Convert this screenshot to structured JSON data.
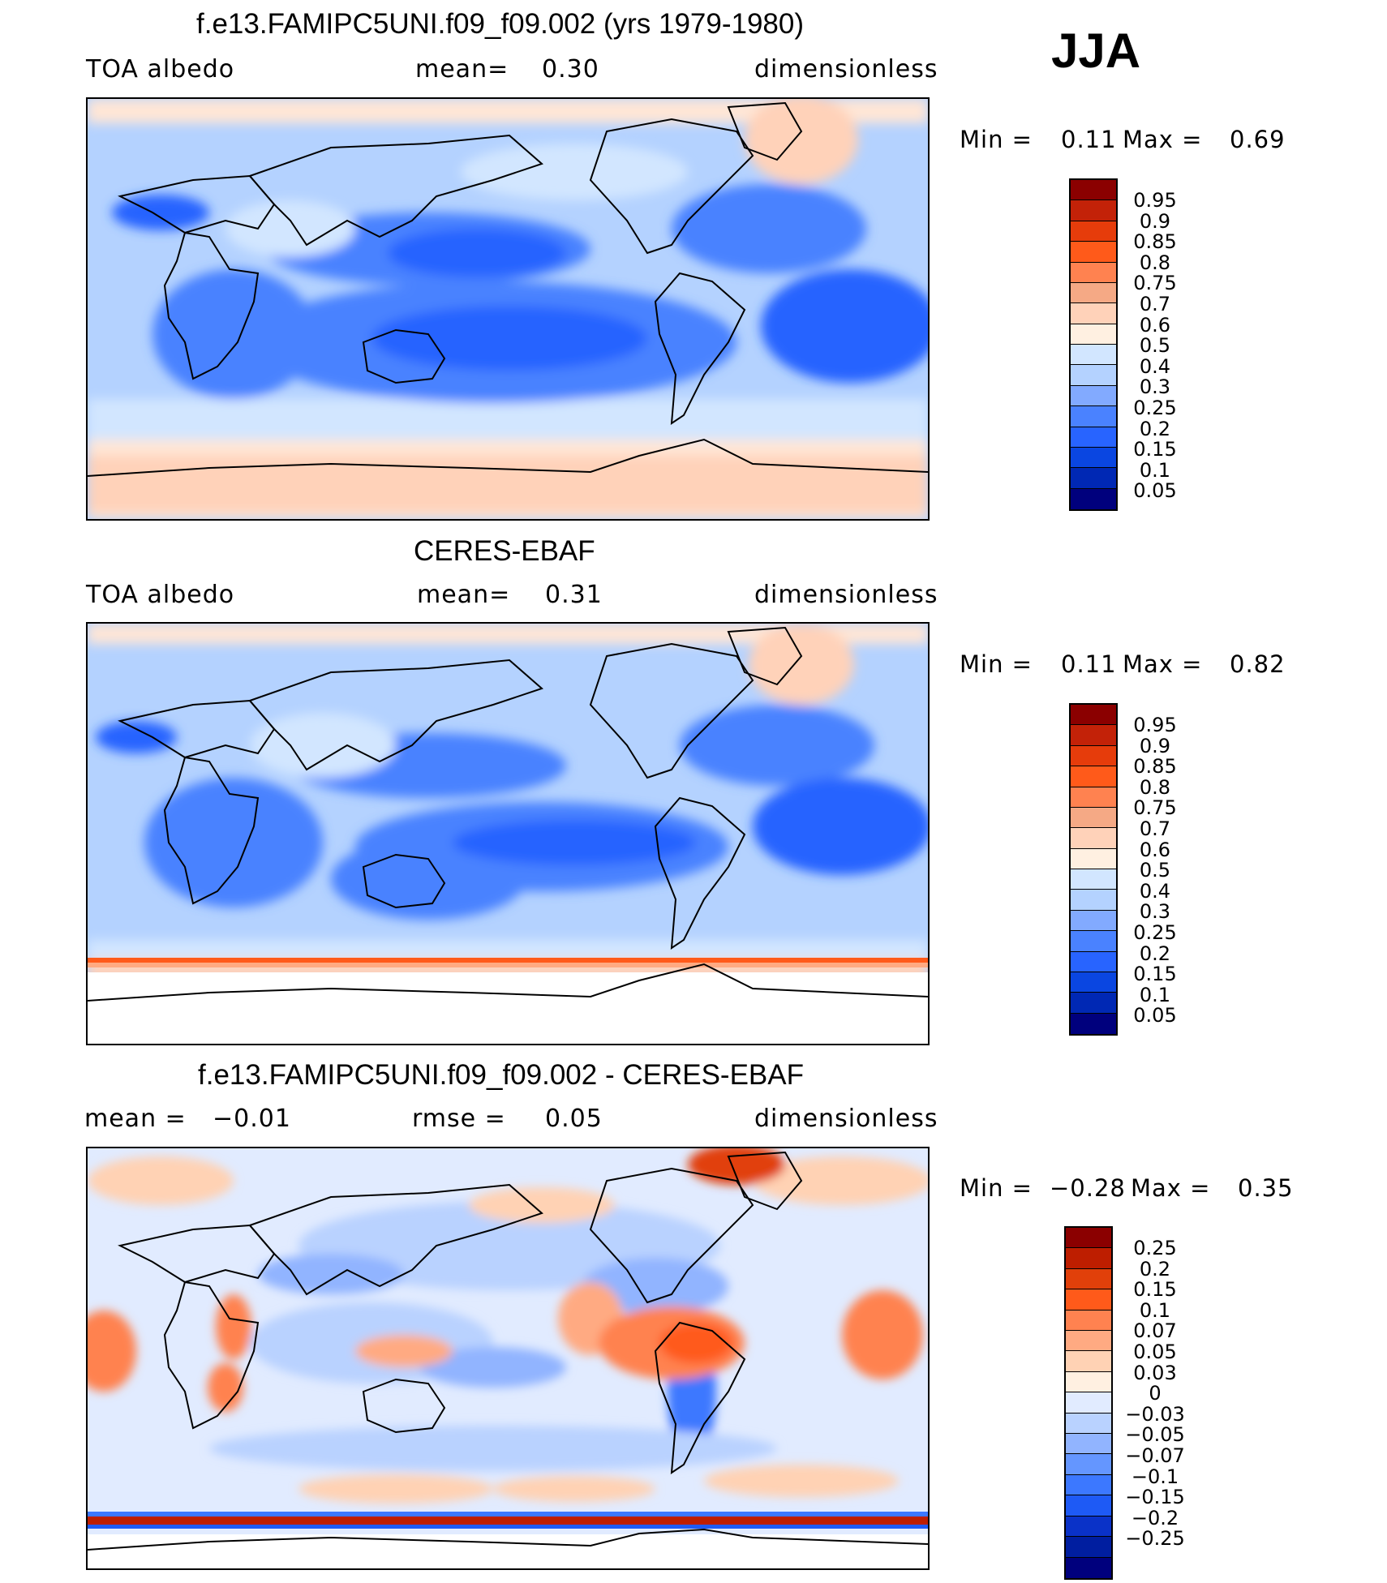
{
  "season": "JJA",
  "colors": {
    "abs": [
      "#8b0000",
      "#c32208",
      "#e63c0b",
      "#ff5a1a",
      "#ff8250",
      "#f5a985",
      "#ffd2b9",
      "#fff0e1",
      "#d2e6ff",
      "#b4d2ff",
      "#82aaff",
      "#4a82ff",
      "#2864ff",
      "#0a46e1",
      "#0028b4",
      "#00007d"
    ],
    "diff": [
      "#8b0000",
      "#be1e00",
      "#e1400a",
      "#ff5a1a",
      "#ff8250",
      "#ffaa82",
      "#ffd2b4",
      "#fff0e1",
      "#e1ebff",
      "#b9d2ff",
      "#91b4ff",
      "#6496ff",
      "#3c78ff",
      "#1e5af5",
      "#0a32c8",
      "#001ea0",
      "#00007d"
    ]
  },
  "panels": [
    {
      "id": "model",
      "title": "f.e13.FAMIPC5UNI.f09_f09.002 (yrs 1979-1980)",
      "left_label": "TOA albedo",
      "center_label": "mean=",
      "center_value": "0.30",
      "right_label": "dimensionless",
      "min_label": "Min =",
      "min_value": "0.11",
      "max_label": "Max =",
      "max_value": "0.69",
      "levels": [
        "0.95",
        "0.9",
        "0.85",
        "0.8",
        "0.75",
        "0.7",
        "0.6",
        "0.5",
        "0.4",
        "0.3",
        "0.25",
        "0.2",
        "0.15",
        "0.1",
        "0.05"
      ]
    },
    {
      "id": "obs",
      "title": "CERES-EBAF",
      "left_label": "TOA albedo",
      "center_label": "mean=",
      "center_value": "0.31",
      "right_label": "dimensionless",
      "min_label": "Min =",
      "min_value": "0.11",
      "max_label": "Max =",
      "max_value": "0.82",
      "levels": [
        "0.95",
        "0.9",
        "0.85",
        "0.8",
        "0.75",
        "0.7",
        "0.6",
        "0.5",
        "0.4",
        "0.3",
        "0.25",
        "0.2",
        "0.15",
        "0.1",
        "0.05"
      ]
    },
    {
      "id": "diff",
      "title": "f.e13.FAMIPC5UNI.f09_f09.002 - CERES-EBAF",
      "left_label": "mean =",
      "left_value": "−0.01",
      "center_label": "rmse =",
      "center_value": "0.05",
      "right_label": "dimensionless",
      "min_label": "Min =",
      "min_value": "−0.28",
      "max_label": "Max =",
      "max_value": "0.35",
      "levels": [
        "0.25",
        "0.2",
        "0.15",
        "0.1",
        "0.07",
        "0.05",
        "0.03",
        "0",
        "−0.03",
        "−0.05",
        "−0.07",
        "−0.1",
        "−0.15",
        "−0.2",
        "−0.25"
      ]
    }
  ]
}
